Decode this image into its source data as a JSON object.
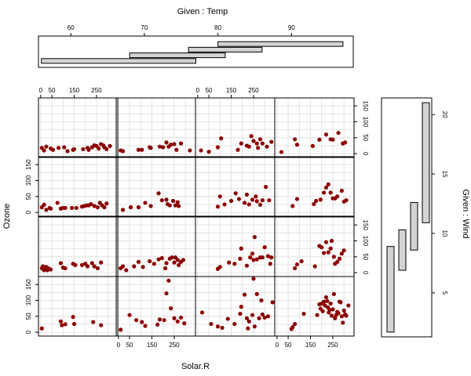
{
  "chart_data": {
    "type": "coplot",
    "xlabel": "Solar.R",
    "ylabel": "Ozone",
    "given_top_label": "Given : Temp",
    "given_right_label": "Given : Wind",
    "x_ticks": [
      "0",
      "50",
      "150",
      "250"
    ],
    "y_ticks": [
      "0",
      "50",
      "100",
      "150"
    ],
    "temp_ticks": [
      "60",
      "70",
      "80",
      "90"
    ],
    "wind_ticks": [
      "5",
      "10",
      "15",
      "20"
    ],
    "xlim": [
      -10,
      345
    ],
    "ylim": [
      -12,
      175
    ],
    "point_color": "#8b0000",
    "grid": true,
    "temp_intervals": [
      [
        56,
        77
      ],
      [
        68,
        81
      ],
      [
        76,
        86
      ],
      [
        80,
        97
      ]
    ],
    "wind_intervals": [
      [
        1.7,
        8.9
      ],
      [
        6.9,
        10.3
      ],
      [
        8.6,
        12.6
      ],
      [
        10.9,
        21
      ]
    ],
    "panels": [
      {
        "row": "top",
        "col": 1,
        "points": [
          [
            5,
            18
          ],
          [
            15,
            10
          ],
          [
            25,
            22
          ],
          [
            45,
            16
          ],
          [
            55,
            12
          ],
          [
            80,
            18
          ],
          [
            105,
            20
          ],
          [
            120,
            8
          ],
          [
            145,
            12
          ],
          [
            150,
            14
          ],
          [
            190,
            14
          ],
          [
            210,
            18
          ],
          [
            215,
            12
          ],
          [
            230,
            20
          ],
          [
            240,
            26
          ],
          [
            250,
            24
          ],
          [
            260,
            16
          ],
          [
            270,
            30
          ],
          [
            280,
            26
          ],
          [
            285,
            20
          ],
          [
            295,
            14
          ],
          [
            310,
            24
          ]
        ]
      },
      {
        "row": "top",
        "col": 2,
        "points": [
          [
            10,
            10
          ],
          [
            20,
            8
          ],
          [
            90,
            12
          ],
          [
            105,
            12
          ],
          [
            140,
            20
          ],
          [
            145,
            18
          ],
          [
            185,
            22
          ],
          [
            200,
            20
          ],
          [
            215,
            35
          ],
          [
            225,
            22
          ],
          [
            235,
            28
          ],
          [
            250,
            30
          ],
          [
            260,
            12
          ],
          [
            280,
            32
          ],
          [
            320,
            10
          ]
        ]
      },
      {
        "row": "top",
        "col": 3,
        "points": [
          [
            15,
            10
          ],
          [
            50,
            6
          ],
          [
            90,
            20
          ],
          [
            105,
            48
          ],
          [
            180,
            12
          ],
          [
            195,
            32
          ],
          [
            220,
            25
          ],
          [
            230,
            22
          ],
          [
            240,
            55
          ],
          [
            250,
            40
          ],
          [
            265,
            32
          ],
          [
            270,
            18
          ],
          [
            280,
            45
          ],
          [
            290,
            32
          ],
          [
            310,
            22
          ],
          [
            330,
            37
          ]
        ]
      },
      {
        "row": "top",
        "col": 4,
        "points": [
          [
            20,
            5
          ],
          [
            80,
            45
          ],
          [
            90,
            28
          ],
          [
            160,
            24
          ],
          [
            190,
            44
          ],
          [
            220,
            60
          ],
          [
            240,
            45
          ],
          [
            250,
            44
          ],
          [
            275,
            65
          ],
          [
            295,
            32
          ],
          [
            305,
            35
          ]
        ]
      },
      {
        "row": "second",
        "col": 1,
        "points": [
          [
            5,
            16
          ],
          [
            15,
            24
          ],
          [
            25,
            8
          ],
          [
            40,
            14
          ],
          [
            45,
            12
          ],
          [
            75,
            30
          ],
          [
            90,
            12
          ],
          [
            100,
            14
          ],
          [
            110,
            14
          ],
          [
            140,
            14
          ],
          [
            160,
            14
          ],
          [
            185,
            18
          ],
          [
            195,
            20
          ],
          [
            205,
            22
          ],
          [
            215,
            22
          ],
          [
            225,
            26
          ],
          [
            240,
            20
          ],
          [
            255,
            16
          ],
          [
            265,
            30
          ],
          [
            275,
            22
          ],
          [
            285,
            16
          ],
          [
            295,
            28
          ]
        ]
      },
      {
        "row": "second",
        "col": 2,
        "points": [
          [
            20,
            8
          ],
          [
            55,
            16
          ],
          [
            90,
            16
          ],
          [
            120,
            30
          ],
          [
            145,
            20
          ],
          [
            180,
            60
          ],
          [
            195,
            38
          ],
          [
            215,
            40
          ],
          [
            220,
            26
          ],
          [
            230,
            22
          ],
          [
            245,
            36
          ],
          [
            255,
            22
          ],
          [
            265,
            32
          ],
          [
            270,
            20
          ]
        ]
      },
      {
        "row": "second",
        "col": 3,
        "points": [
          [
            90,
            18
          ],
          [
            100,
            50
          ],
          [
            120,
            25
          ],
          [
            150,
            36
          ],
          [
            170,
            60
          ],
          [
            185,
            42
          ],
          [
            210,
            30
          ],
          [
            220,
            56
          ],
          [
            230,
            25
          ],
          [
            245,
            40
          ],
          [
            260,
            50
          ],
          [
            265,
            35
          ],
          [
            280,
            24
          ],
          [
            290,
            38
          ],
          [
            305,
            80
          ],
          [
            320,
            38
          ]
        ]
      },
      {
        "row": "second",
        "col": 4,
        "points": [
          [
            70,
            20
          ],
          [
            90,
            42
          ],
          [
            165,
            26
          ],
          [
            175,
            36
          ],
          [
            195,
            40
          ],
          [
            210,
            62
          ],
          [
            220,
            78
          ],
          [
            230,
            88
          ],
          [
            240,
            62
          ],
          [
            250,
            44
          ],
          [
            260,
            44
          ],
          [
            270,
            50
          ],
          [
            290,
            68
          ],
          [
            300,
            34
          ],
          [
            310,
            38
          ]
        ]
      },
      {
        "row": "third",
        "col": 1,
        "points": [
          [
            5,
            14
          ],
          [
            10,
            20
          ],
          [
            15,
            8
          ],
          [
            25,
            18
          ],
          [
            30,
            8
          ],
          [
            35,
            14
          ],
          [
            45,
            10
          ],
          [
            90,
            30
          ],
          [
            100,
            16
          ],
          [
            110,
            14
          ],
          [
            145,
            28
          ],
          [
            155,
            24
          ],
          [
            185,
            24
          ],
          [
            200,
            28
          ],
          [
            210,
            20
          ],
          [
            230,
            30
          ],
          [
            240,
            20
          ],
          [
            255,
            14
          ],
          [
            270,
            32
          ]
        ]
      },
      {
        "row": "third",
        "col": 2,
        "points": [
          [
            10,
            14
          ],
          [
            20,
            20
          ],
          [
            35,
            8
          ],
          [
            70,
            20
          ],
          [
            90,
            34
          ],
          [
            110,
            18
          ],
          [
            140,
            36
          ],
          [
            160,
            28
          ],
          [
            180,
            42
          ],
          [
            195,
            46
          ],
          [
            210,
            14
          ],
          [
            215,
            30
          ],
          [
            230,
            44
          ],
          [
            240,
            48
          ],
          [
            250,
            32
          ],
          [
            255,
            48
          ],
          [
            265,
            40
          ],
          [
            270,
            24
          ],
          [
            280,
            34
          ],
          [
            290,
            40
          ]
        ]
      },
      {
        "row": "third",
        "col": 3,
        "points": [
          [
            90,
            12
          ],
          [
            100,
            18
          ],
          [
            140,
            32
          ],
          [
            165,
            28
          ],
          [
            190,
            44
          ],
          [
            195,
            76
          ],
          [
            220,
            22
          ],
          [
            235,
            48
          ],
          [
            245,
            60
          ],
          [
            250,
            40
          ],
          [
            255,
            112
          ],
          [
            265,
            42
          ],
          [
            280,
            48
          ],
          [
            290,
            48
          ],
          [
            300,
            80
          ],
          [
            315,
            52
          ],
          [
            325,
            28
          ],
          [
            330,
            48
          ]
        ]
      },
      {
        "row": "third",
        "col": 4,
        "points": [
          [
            80,
            14
          ],
          [
            90,
            26
          ],
          [
            110,
            36
          ],
          [
            170,
            20
          ],
          [
            190,
            84
          ],
          [
            200,
            80
          ],
          [
            210,
            62
          ],
          [
            220,
            96
          ],
          [
            230,
            64
          ],
          [
            240,
            76
          ],
          [
            245,
            100
          ],
          [
            255,
            50
          ],
          [
            260,
            28
          ],
          [
            270,
            34
          ],
          [
            280,
            44
          ],
          [
            290,
            60
          ],
          [
            300,
            70
          ]
        ]
      },
      {
        "row": "bottom",
        "col": 1,
        "points": [
          [
            5,
            12
          ],
          [
            90,
            34
          ],
          [
            95,
            22
          ],
          [
            110,
            25
          ],
          [
            145,
            48
          ],
          [
            150,
            26
          ],
          [
            235,
            32
          ],
          [
            270,
            22
          ]
        ]
      },
      {
        "row": "bottom",
        "col": 2,
        "points": [
          [
            10,
            8
          ],
          [
            50,
            54
          ],
          [
            80,
            38
          ],
          [
            105,
            32
          ],
          [
            120,
            20
          ],
          [
            175,
            24
          ],
          [
            185,
            40
          ],
          [
            205,
            38
          ],
          [
            215,
            122
          ],
          [
            225,
            162
          ],
          [
            235,
            75
          ],
          [
            250,
            44
          ],
          [
            265,
            34
          ],
          [
            280,
            46
          ],
          [
            295,
            28
          ]
        ]
      },
      {
        "row": "bottom",
        "col": 3,
        "points": [
          [
            20,
            62
          ],
          [
            60,
            26
          ],
          [
            90,
            18
          ],
          [
            110,
            14
          ],
          [
            135,
            42
          ],
          [
            165,
            26
          ],
          [
            190,
            58
          ],
          [
            195,
            80
          ],
          [
            210,
            118
          ],
          [
            220,
            44
          ],
          [
            225,
            12
          ],
          [
            230,
            34
          ],
          [
            245,
            54
          ],
          [
            250,
            168
          ],
          [
            255,
            18
          ],
          [
            265,
            120
          ],
          [
            275,
            44
          ],
          [
            285,
            100
          ],
          [
            290,
            56
          ],
          [
            300,
            46
          ],
          [
            315,
            50
          ],
          [
            335,
            94
          ]
        ]
      },
      {
        "row": "bottom",
        "col": 4,
        "points": [
          [
            65,
            10
          ],
          [
            70,
            16
          ],
          [
            80,
            26
          ],
          [
            120,
            58
          ],
          [
            180,
            54
          ],
          [
            190,
            88
          ],
          [
            195,
            74
          ],
          [
            200,
            90
          ],
          [
            205,
            66
          ],
          [
            210,
            96
          ],
          [
            215,
            84
          ],
          [
            220,
            110
          ],
          [
            225,
            98
          ],
          [
            228,
            78
          ],
          [
            232,
            62
          ],
          [
            236,
            70
          ],
          [
            240,
            90
          ],
          [
            245,
            52
          ],
          [
            250,
            72
          ],
          [
            255,
            120
          ],
          [
            260,
            44
          ],
          [
            265,
            54
          ],
          [
            270,
            64
          ],
          [
            275,
            60
          ],
          [
            280,
            96
          ],
          [
            285,
            94
          ],
          [
            290,
            50
          ],
          [
            295,
            30
          ],
          [
            300,
            68
          ],
          [
            305,
            56
          ],
          [
            310,
            52
          ],
          [
            320,
            84
          ]
        ]
      }
    ]
  }
}
